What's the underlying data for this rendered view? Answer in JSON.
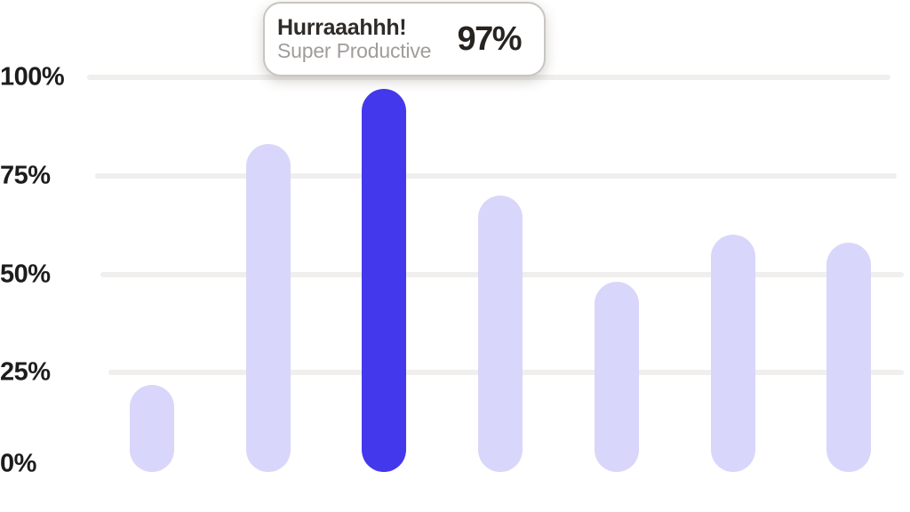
{
  "chart_data": {
    "type": "bar",
    "title": "",
    "xlabel": "",
    "ylabel": "",
    "ylim": [
      0,
      100
    ],
    "y_ticks": [
      "100%",
      "75%",
      "50%",
      "25%",
      "0%"
    ],
    "grid": "horizontal",
    "legend": "none",
    "values": [
      22,
      83,
      97,
      70,
      48,
      60,
      58
    ],
    "highlighted_index": 2,
    "highlighted_value": 97,
    "colors": {
      "bar": "#d8d6fa",
      "bar_active": "#4438ec",
      "gridline": "#f0efed",
      "tick_text": "#1c1c1c"
    }
  },
  "tooltip": {
    "title": "Hurraaahhh!",
    "subtitle": "Super Productive",
    "value": "97%"
  }
}
